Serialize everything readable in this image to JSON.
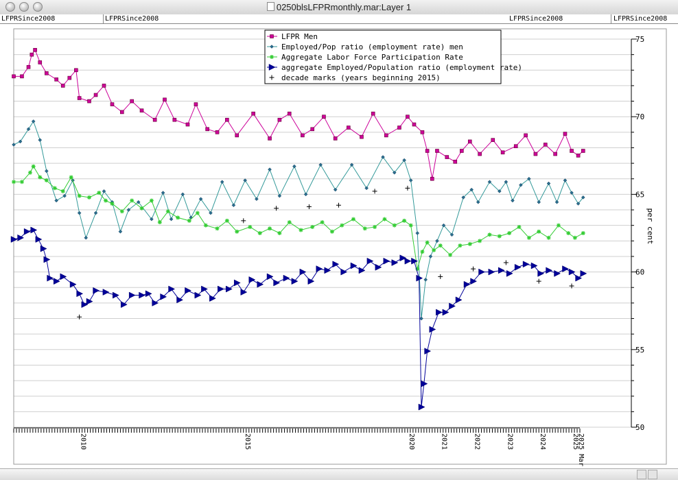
{
  "window": {
    "title": "0250blsLFPRmonthly.mar:Layer 1"
  },
  "tabs": [
    "LFPRSince2008",
    "LFPRSince2008",
    "LFPRSince2008",
    "LFPRSince2008"
  ],
  "chart_data": {
    "type": "line",
    "title": "",
    "xlabel": "",
    "ylabel": "per cent",
    "ylim": [
      50,
      75
    ],
    "yticks": [
      50,
      55,
      60,
      65,
      70,
      75
    ],
    "x_tick_labels": [
      "2010",
      "2015",
      "2020",
      "2021",
      "2022",
      "2023",
      "2024",
      "2025",
      "2025 Mar"
    ],
    "grid": true,
    "legend_position": "top-center",
    "series": [
      {
        "name": "LFPR Men",
        "color": "#cc0099",
        "marker": "square",
        "points": [
          [
            2008.0,
            72.6
          ],
          [
            2008.25,
            72.6
          ],
          [
            2008.45,
            73.2
          ],
          [
            2008.55,
            74.0
          ],
          [
            2008.65,
            74.3
          ],
          [
            2008.8,
            73.5
          ],
          [
            2009.0,
            72.8
          ],
          [
            2009.3,
            72.4
          ],
          [
            2009.5,
            72.0
          ],
          [
            2009.7,
            72.5
          ],
          [
            2009.9,
            73.0
          ],
          [
            2010.0,
            71.2
          ],
          [
            2010.3,
            71.0
          ],
          [
            2010.5,
            71.4
          ],
          [
            2010.75,
            72.0
          ],
          [
            2011.0,
            70.8
          ],
          [
            2011.3,
            70.3
          ],
          [
            2011.6,
            71.0
          ],
          [
            2011.9,
            70.4
          ],
          [
            2012.3,
            69.8
          ],
          [
            2012.6,
            71.1
          ],
          [
            2012.9,
            69.8
          ],
          [
            2013.3,
            69.5
          ],
          [
            2013.55,
            70.8
          ],
          [
            2013.9,
            69.2
          ],
          [
            2014.2,
            69.0
          ],
          [
            2014.5,
            69.8
          ],
          [
            2014.8,
            68.8
          ],
          [
            2015.3,
            70.2
          ],
          [
            2015.8,
            68.6
          ],
          [
            2016.1,
            69.8
          ],
          [
            2016.4,
            70.2
          ],
          [
            2016.8,
            68.8
          ],
          [
            2017.1,
            69.2
          ],
          [
            2017.45,
            70.0
          ],
          [
            2017.8,
            68.6
          ],
          [
            2018.2,
            69.3
          ],
          [
            2018.6,
            68.7
          ],
          [
            2018.95,
            70.2
          ],
          [
            2019.35,
            68.8
          ],
          [
            2019.75,
            69.3
          ],
          [
            2020.0,
            70.0
          ],
          [
            2020.2,
            69.5
          ],
          [
            2020.45,
            69.0
          ],
          [
            2020.6,
            67.8
          ],
          [
            2020.75,
            66.0
          ],
          [
            2020.9,
            67.8
          ],
          [
            2021.2,
            67.4
          ],
          [
            2021.45,
            67.1
          ],
          [
            2021.65,
            67.8
          ],
          [
            2021.9,
            68.4
          ],
          [
            2022.2,
            67.6
          ],
          [
            2022.6,
            68.5
          ],
          [
            2022.9,
            67.7
          ],
          [
            2023.3,
            68.1
          ],
          [
            2023.6,
            68.8
          ],
          [
            2023.9,
            67.6
          ],
          [
            2024.2,
            68.2
          ],
          [
            2024.5,
            67.6
          ],
          [
            2024.8,
            68.9
          ],
          [
            2025.0,
            67.8
          ],
          [
            2025.2,
            67.5
          ],
          [
            2025.35,
            67.8
          ]
        ]
      },
      {
        "name": "Employed/Pop ratio (employment rate) men",
        "color": "#339999",
        "marker": "diamond",
        "points": [
          [
            2008.0,
            68.2
          ],
          [
            2008.2,
            68.4
          ],
          [
            2008.45,
            69.2
          ],
          [
            2008.6,
            69.7
          ],
          [
            2008.8,
            68.5
          ],
          [
            2009.0,
            66.5
          ],
          [
            2009.3,
            64.6
          ],
          [
            2009.55,
            64.9
          ],
          [
            2009.8,
            65.9
          ],
          [
            2010.0,
            63.8
          ],
          [
            2010.2,
            62.2
          ],
          [
            2010.5,
            63.8
          ],
          [
            2010.75,
            65.2
          ],
          [
            2011.0,
            64.5
          ],
          [
            2011.25,
            62.6
          ],
          [
            2011.5,
            64.0
          ],
          [
            2011.8,
            64.5
          ],
          [
            2012.2,
            63.4
          ],
          [
            2012.55,
            65.1
          ],
          [
            2012.8,
            63.4
          ],
          [
            2013.15,
            65.0
          ],
          [
            2013.4,
            63.5
          ],
          [
            2013.7,
            64.7
          ],
          [
            2014.0,
            63.8
          ],
          [
            2014.35,
            65.8
          ],
          [
            2014.7,
            64.3
          ],
          [
            2015.05,
            65.9
          ],
          [
            2015.4,
            64.7
          ],
          [
            2015.8,
            66.6
          ],
          [
            2016.1,
            64.9
          ],
          [
            2016.55,
            66.8
          ],
          [
            2016.9,
            65.0
          ],
          [
            2017.35,
            66.9
          ],
          [
            2017.8,
            65.3
          ],
          [
            2018.3,
            66.9
          ],
          [
            2018.75,
            65.4
          ],
          [
            2019.25,
            67.4
          ],
          [
            2019.6,
            66.4
          ],
          [
            2019.9,
            67.2
          ],
          [
            2020.1,
            65.9
          ],
          [
            2020.3,
            62.5
          ],
          [
            2020.42,
            57.0
          ],
          [
            2020.55,
            59.5
          ],
          [
            2020.7,
            61.0
          ],
          [
            2020.9,
            62.0
          ],
          [
            2021.1,
            63.0
          ],
          [
            2021.35,
            62.4
          ],
          [
            2021.7,
            64.8
          ],
          [
            2021.95,
            65.3
          ],
          [
            2022.15,
            64.5
          ],
          [
            2022.5,
            65.8
          ],
          [
            2022.8,
            65.2
          ],
          [
            2023.0,
            65.8
          ],
          [
            2023.2,
            64.6
          ],
          [
            2023.45,
            65.6
          ],
          [
            2023.7,
            66.0
          ],
          [
            2024.0,
            64.5
          ],
          [
            2024.3,
            65.7
          ],
          [
            2024.55,
            64.5
          ],
          [
            2024.8,
            65.9
          ],
          [
            2025.0,
            65.1
          ],
          [
            2025.2,
            64.4
          ],
          [
            2025.35,
            64.8
          ]
        ]
      },
      {
        "name": "Aggregate Labor Force Participation Rate",
        "color": "#33cc33",
        "marker": "asterisk",
        "points": [
          [
            2008.0,
            65.8
          ],
          [
            2008.25,
            65.8
          ],
          [
            2008.5,
            66.4
          ],
          [
            2008.6,
            66.8
          ],
          [
            2008.8,
            66.1
          ],
          [
            2009.0,
            65.9
          ],
          [
            2009.25,
            65.4
          ],
          [
            2009.5,
            65.2
          ],
          [
            2009.75,
            66.1
          ],
          [
            2010.0,
            64.9
          ],
          [
            2010.3,
            64.8
          ],
          [
            2010.6,
            65.1
          ],
          [
            2010.8,
            64.6
          ],
          [
            2011.0,
            64.4
          ],
          [
            2011.3,
            63.9
          ],
          [
            2011.6,
            64.6
          ],
          [
            2011.9,
            64.1
          ],
          [
            2012.2,
            64.6
          ],
          [
            2012.45,
            63.2
          ],
          [
            2012.7,
            63.9
          ],
          [
            2013.0,
            63.5
          ],
          [
            2013.35,
            63.3
          ],
          [
            2013.6,
            63.8
          ],
          [
            2013.85,
            63.0
          ],
          [
            2014.2,
            62.8
          ],
          [
            2014.5,
            63.3
          ],
          [
            2014.8,
            62.6
          ],
          [
            2015.2,
            62.9
          ],
          [
            2015.5,
            62.5
          ],
          [
            2015.8,
            62.8
          ],
          [
            2016.1,
            62.5
          ],
          [
            2016.4,
            63.2
          ],
          [
            2016.75,
            62.7
          ],
          [
            2017.1,
            62.9
          ],
          [
            2017.4,
            63.2
          ],
          [
            2017.7,
            62.6
          ],
          [
            2018.0,
            63.0
          ],
          [
            2018.35,
            63.4
          ],
          [
            2018.7,
            62.8
          ],
          [
            2019.0,
            62.9
          ],
          [
            2019.3,
            63.4
          ],
          [
            2019.6,
            63.0
          ],
          [
            2019.9,
            63.3
          ],
          [
            2020.1,
            63.0
          ],
          [
            2020.3,
            60.2
          ],
          [
            2020.45,
            61.3
          ],
          [
            2020.6,
            61.9
          ],
          [
            2020.8,
            61.4
          ],
          [
            2021.0,
            61.7
          ],
          [
            2021.3,
            61.1
          ],
          [
            2021.6,
            61.7
          ],
          [
            2021.9,
            61.8
          ],
          [
            2022.2,
            62.0
          ],
          [
            2022.5,
            62.4
          ],
          [
            2022.8,
            62.3
          ],
          [
            2023.1,
            62.5
          ],
          [
            2023.4,
            62.9
          ],
          [
            2023.7,
            62.2
          ],
          [
            2024.0,
            62.6
          ],
          [
            2024.3,
            62.2
          ],
          [
            2024.6,
            63.0
          ],
          [
            2024.9,
            62.5
          ],
          [
            2025.1,
            62.2
          ],
          [
            2025.35,
            62.5
          ]
        ]
      },
      {
        "name": "aggregate Employed/Population ratio (employment rate)",
        "color": "#000099",
        "marker": "triangle-right",
        "points": [
          [
            2008.0,
            62.1
          ],
          [
            2008.2,
            62.2
          ],
          [
            2008.4,
            62.6
          ],
          [
            2008.6,
            62.7
          ],
          [
            2008.75,
            62.1
          ],
          [
            2008.9,
            61.5
          ],
          [
            2009.0,
            60.8
          ],
          [
            2009.1,
            59.6
          ],
          [
            2009.3,
            59.4
          ],
          [
            2009.5,
            59.7
          ],
          [
            2009.8,
            59.2
          ],
          [
            2010.0,
            58.6
          ],
          [
            2010.15,
            57.9
          ],
          [
            2010.3,
            58.1
          ],
          [
            2010.5,
            58.8
          ],
          [
            2010.8,
            58.7
          ],
          [
            2011.1,
            58.5
          ],
          [
            2011.35,
            57.9
          ],
          [
            2011.6,
            58.5
          ],
          [
            2011.9,
            58.5
          ],
          [
            2012.1,
            58.6
          ],
          [
            2012.3,
            58.0
          ],
          [
            2012.55,
            58.4
          ],
          [
            2012.8,
            58.9
          ],
          [
            2013.05,
            58.2
          ],
          [
            2013.3,
            58.8
          ],
          [
            2013.6,
            58.5
          ],
          [
            2013.8,
            58.9
          ],
          [
            2014.05,
            58.3
          ],
          [
            2014.3,
            58.9
          ],
          [
            2014.55,
            58.9
          ],
          [
            2014.8,
            59.3
          ],
          [
            2015.0,
            58.7
          ],
          [
            2015.25,
            59.5
          ],
          [
            2015.5,
            59.2
          ],
          [
            2015.8,
            59.7
          ],
          [
            2016.0,
            59.3
          ],
          [
            2016.3,
            59.6
          ],
          [
            2016.55,
            59.4
          ],
          [
            2016.8,
            60.0
          ],
          [
            2017.05,
            59.4
          ],
          [
            2017.3,
            60.2
          ],
          [
            2017.55,
            60.1
          ],
          [
            2017.8,
            60.5
          ],
          [
            2018.05,
            60.0
          ],
          [
            2018.35,
            60.4
          ],
          [
            2018.6,
            60.1
          ],
          [
            2018.85,
            60.7
          ],
          [
            2019.1,
            60.3
          ],
          [
            2019.35,
            60.7
          ],
          [
            2019.6,
            60.6
          ],
          [
            2019.85,
            60.9
          ],
          [
            2020.0,
            60.7
          ],
          [
            2020.2,
            60.7
          ],
          [
            2020.35,
            59.6
          ],
          [
            2020.42,
            51.3
          ],
          [
            2020.5,
            52.8
          ],
          [
            2020.6,
            54.9
          ],
          [
            2020.75,
            56.3
          ],
          [
            2020.95,
            57.4
          ],
          [
            2021.15,
            57.4
          ],
          [
            2021.35,
            57.8
          ],
          [
            2021.55,
            58.2
          ],
          [
            2021.8,
            59.2
          ],
          [
            2022.0,
            59.4
          ],
          [
            2022.25,
            60.0
          ],
          [
            2022.55,
            60.0
          ],
          [
            2022.85,
            60.1
          ],
          [
            2023.1,
            59.9
          ],
          [
            2023.35,
            60.3
          ],
          [
            2023.6,
            60.5
          ],
          [
            2023.85,
            60.4
          ],
          [
            2024.05,
            59.9
          ],
          [
            2024.3,
            60.1
          ],
          [
            2024.55,
            59.9
          ],
          [
            2024.8,
            60.2
          ],
          [
            2025.0,
            60.0
          ],
          [
            2025.2,
            59.6
          ],
          [
            2025.35,
            59.9
          ]
        ]
      },
      {
        "name": "decade marks (years beginning 2015)",
        "color": "#000000",
        "marker": "plus",
        "points": [
          [
            2010.0,
            57.1
          ],
          [
            2015.0,
            63.3
          ],
          [
            2016.0,
            64.1
          ],
          [
            2017.0,
            64.2
          ],
          [
            2017.9,
            64.3
          ],
          [
            2019.0,
            65.2
          ],
          [
            2020.0,
            65.4
          ],
          [
            2021.0,
            59.7
          ],
          [
            2022.0,
            60.2
          ],
          [
            2023.0,
            60.6
          ],
          [
            2024.0,
            59.4
          ],
          [
            2025.0,
            59.1
          ]
        ]
      }
    ]
  }
}
